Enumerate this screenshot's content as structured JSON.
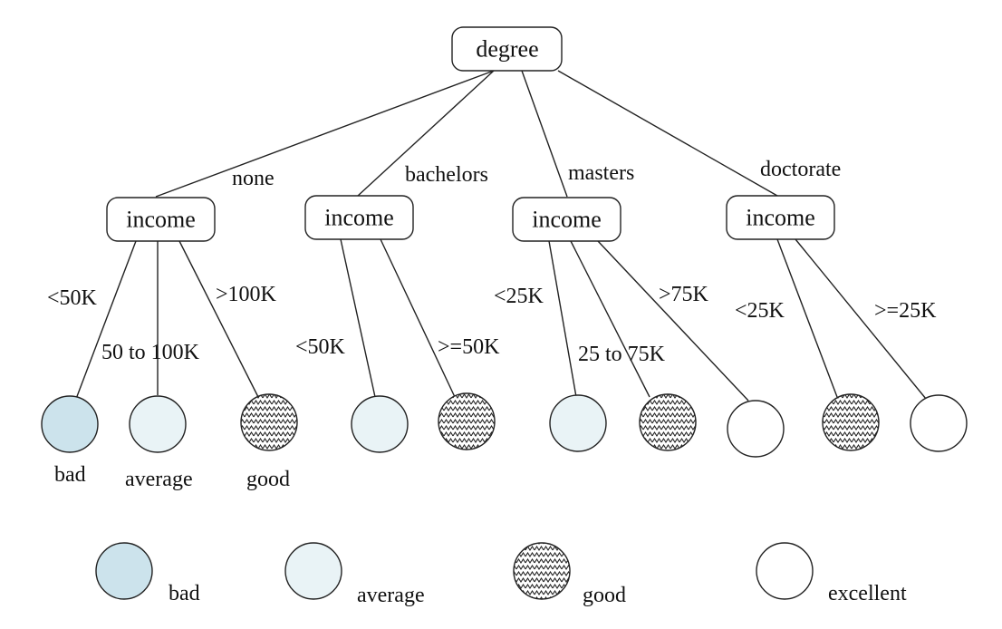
{
  "root": {
    "label": "degree"
  },
  "branches": [
    {
      "edge_label": "none",
      "node_label": "income",
      "children": [
        {
          "edge_label": "<50K",
          "class": "bad"
        },
        {
          "edge_label": "50 to 100K",
          "class": "average"
        },
        {
          "edge_label": ">100K",
          "class": "good"
        }
      ]
    },
    {
      "edge_label": "bachelors",
      "node_label": "income",
      "children": [
        {
          "edge_label": "<50K",
          "class": "average"
        },
        {
          "edge_label": ">=50K",
          "class": "good"
        }
      ]
    },
    {
      "edge_label": "masters",
      "node_label": "income",
      "children": [
        {
          "edge_label": "<25K",
          "class": "average"
        },
        {
          "edge_label": "25 to 75K",
          "class": "good"
        },
        {
          "edge_label": ">75K",
          "class": "excellent"
        }
      ]
    },
    {
      "edge_label": "doctorate",
      "node_label": "income",
      "children": [
        {
          "edge_label": "<25K",
          "class": "good"
        },
        {
          "edge_label": ">=25K",
          "class": "excellent"
        }
      ]
    }
  ],
  "leaf_captions": [
    "bad",
    "average",
    "good"
  ],
  "legend": [
    {
      "class": "bad",
      "label": "bad"
    },
    {
      "class": "average",
      "label": "average"
    },
    {
      "class": "good",
      "label": "good"
    },
    {
      "class": "excellent",
      "label": "excellent"
    }
  ],
  "colors": {
    "bad": "#cce3ec",
    "average": "#e9f3f6",
    "excellent": "#ffffff",
    "good_pattern_fg": "#222222",
    "good_pattern_bg": "#ffffff"
  }
}
